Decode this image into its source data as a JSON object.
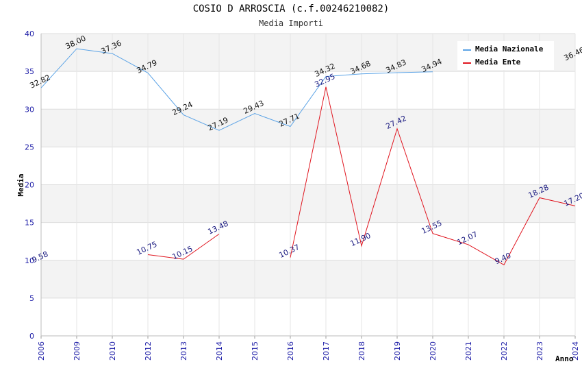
{
  "chart_data": {
    "type": "line",
    "title": "COSIO D ARROSCIA (c.f.00246210082)",
    "subtitle": "Media Importi",
    "xlabel": "Anno",
    "ylabel": "Media",
    "ylim": [
      0,
      40
    ],
    "yticks": [
      "0",
      "5",
      "10",
      "15",
      "20",
      "25",
      "30",
      "35",
      "40"
    ],
    "categories": [
      "2006",
      "2009",
      "2010",
      "2012",
      "2013",
      "2014",
      "2015",
      "2016",
      "2017",
      "2018",
      "2019",
      "2020",
      "2021",
      "2022",
      "2023",
      "2024"
    ],
    "grid": true,
    "legend_position": "top-right",
    "series": [
      {
        "name": "Media Nazionale",
        "color": "#5ba3e6",
        "values": [
          32.82,
          38.0,
          37.36,
          34.79,
          29.24,
          27.19,
          29.43,
          27.71,
          34.32,
          34.68,
          34.83,
          34.94,
          null,
          null,
          null,
          36.46
        ],
        "labels": [
          "32.82",
          "38.00",
          "37.36",
          "34.79",
          "29.24",
          "27.19",
          "29.43",
          "27.71",
          "34.32",
          "34.68",
          "34.83",
          "34.94",
          "",
          "",
          "",
          "36.46"
        ]
      },
      {
        "name": "Media Ente",
        "color": "#e0141e",
        "values": [
          9.58,
          null,
          null,
          10.75,
          10.15,
          13.48,
          null,
          10.37,
          32.95,
          11.9,
          27.42,
          13.55,
          12.07,
          9.4,
          18.28,
          17.2
        ],
        "labels": [
          "9.58",
          "",
          "",
          "10.75",
          "10.15",
          "13.48",
          "",
          "10.37",
          "32.95",
          "11.90",
          "27.42",
          "13.55",
          "12.07",
          "9.40",
          "18.28",
          "17.20"
        ]
      }
    ]
  }
}
